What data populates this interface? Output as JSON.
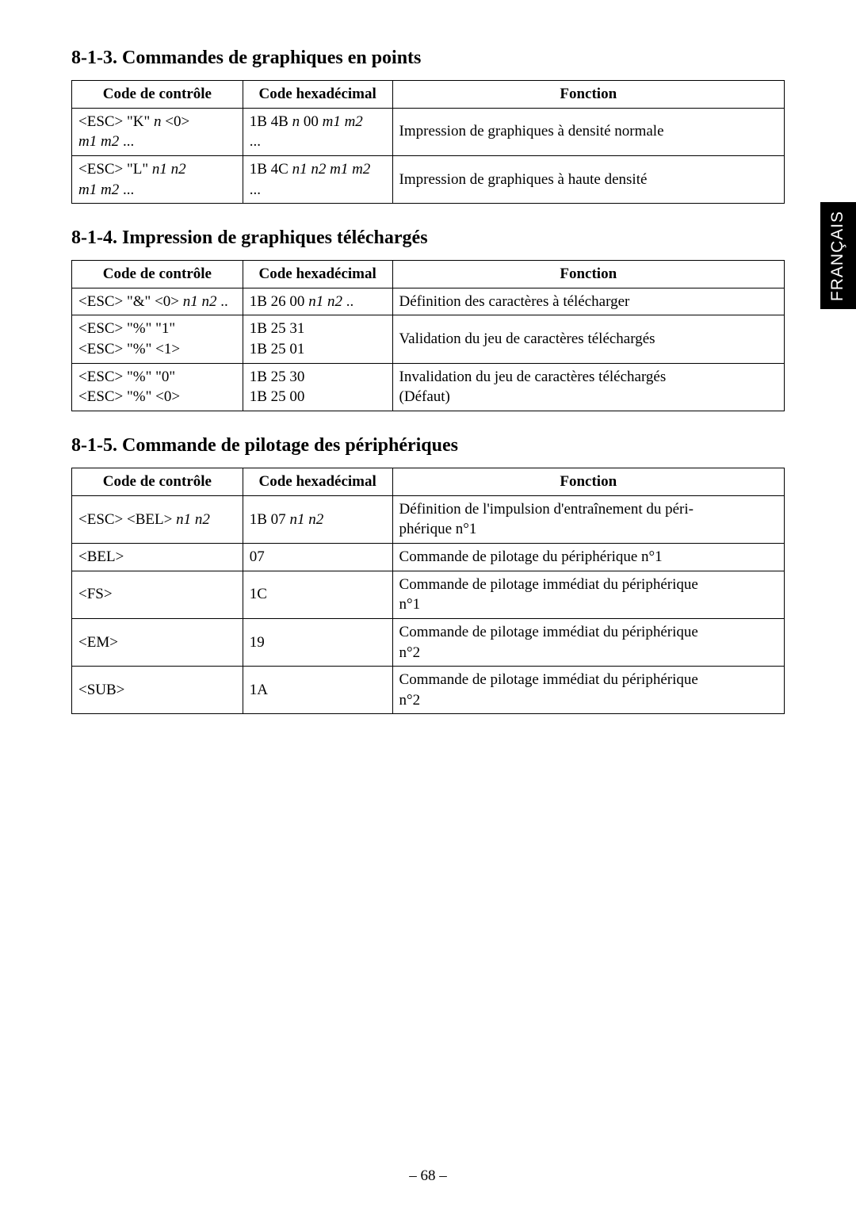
{
  "sideTab": "FRANÇAIS",
  "pageNumber": "– 68 –",
  "sections": [
    {
      "heading": "8-1-3. Commandes de graphiques en points",
      "headers": [
        "Code de contrôle",
        "Code hexadécimal",
        "Fonction"
      ],
      "rows": [
        {
          "control": [
            {
              "segments": [
                {
                  "t": "<ESC> \"K\" "
                },
                {
                  "t": "n",
                  "i": true
                },
                {
                  "t": " <0>"
                }
              ]
            },
            {
              "segments": [
                {
                  "t": "m1 m2",
                  "i": true
                },
                {
                  "t": " ..."
                }
              ]
            }
          ],
          "hex": [
            {
              "segments": [
                {
                  "t": "1B 4B "
                },
                {
                  "t": "n",
                  "i": true
                },
                {
                  "t": " 00 "
                },
                {
                  "t": "m1 m2",
                  "i": true
                }
              ]
            },
            {
              "segments": [
                {
                  "t": "..."
                }
              ]
            }
          ],
          "func": [
            {
              "segments": [
                {
                  "t": "Impression de graphiques à densité normale"
                }
              ]
            }
          ]
        },
        {
          "control": [
            {
              "segments": [
                {
                  "t": "<ESC> \"L\" "
                },
                {
                  "t": "n1 n2",
                  "i": true
                }
              ]
            },
            {
              "segments": [
                {
                  "t": "m1 m2",
                  "i": true
                },
                {
                  "t": " ..."
                }
              ]
            }
          ],
          "hex": [
            {
              "segments": [
                {
                  "t": "1B 4C "
                },
                {
                  "t": "n1 n2 m1 m2",
                  "i": true
                }
              ]
            },
            {
              "segments": [
                {
                  "t": "..."
                }
              ]
            }
          ],
          "func": [
            {
              "segments": [
                {
                  "t": "Impression de graphiques à haute densité"
                }
              ]
            }
          ]
        }
      ]
    },
    {
      "heading": "8-1-4. Impression de graphiques téléchargés",
      "headers": [
        "Code de contrôle",
        "Code hexadécimal",
        "Fonction"
      ],
      "rows": [
        {
          "control": [
            {
              "segments": [
                {
                  "t": "<ESC> \"&\" <0> "
                },
                {
                  "t": "n1 n2",
                  "i": true
                },
                {
                  "t": " .."
                }
              ]
            }
          ],
          "hex": [
            {
              "segments": [
                {
                  "t": "1B 26 00 "
                },
                {
                  "t": "n1 n2",
                  "i": true
                },
                {
                  "t": " .."
                }
              ]
            }
          ],
          "func": [
            {
              "segments": [
                {
                  "t": "Définition des caractères à télécharger"
                }
              ]
            }
          ]
        },
        {
          "control": [
            {
              "segments": [
                {
                  "t": "<ESC> \"%\" \"1\""
                }
              ]
            },
            {
              "segments": [
                {
                  "t": "<ESC> \"%\" <1>"
                }
              ]
            }
          ],
          "hex": [
            {
              "segments": [
                {
                  "t": "1B 25 31"
                }
              ]
            },
            {
              "segments": [
                {
                  "t": "1B 25 01"
                }
              ]
            }
          ],
          "func": [
            {
              "segments": [
                {
                  "t": "Validation du jeu de caractères téléchargés"
                }
              ]
            }
          ]
        },
        {
          "control": [
            {
              "segments": [
                {
                  "t": "<ESC> \"%\" \"0\""
                }
              ]
            },
            {
              "segments": [
                {
                  "t": "<ESC> \"%\" <0>"
                }
              ]
            }
          ],
          "hex": [
            {
              "segments": [
                {
                  "t": "1B 25 30"
                }
              ]
            },
            {
              "segments": [
                {
                  "t": "1B 25 00"
                }
              ]
            }
          ],
          "func": [
            {
              "segments": [
                {
                  "t": "Invalidation du jeu de caractères téléchargés"
                }
              ]
            },
            {
              "segments": [
                {
                  "t": "(Défaut)"
                }
              ]
            }
          ]
        }
      ]
    },
    {
      "heading": "8-1-5. Commande de pilotage des périphériques",
      "headers": [
        "Code de contrôle",
        "Code hexadécimal",
        "Fonction"
      ],
      "rows": [
        {
          "control": [
            {
              "segments": [
                {
                  "t": "<ESC> <BEL> "
                },
                {
                  "t": "n1 n2",
                  "i": true
                }
              ]
            }
          ],
          "hex": [
            {
              "segments": [
                {
                  "t": "1B 07 "
                },
                {
                  "t": "n1 n2",
                  "i": true
                }
              ]
            }
          ],
          "func": [
            {
              "segments": [
                {
                  "t": "Définition de l'impulsion d'entraînement du péri-"
                }
              ]
            },
            {
              "segments": [
                {
                  "t": "phérique n°1"
                }
              ]
            }
          ]
        },
        {
          "control": [
            {
              "segments": [
                {
                  "t": "<BEL>"
                }
              ]
            }
          ],
          "hex": [
            {
              "segments": [
                {
                  "t": "07"
                }
              ]
            }
          ],
          "func": [
            {
              "segments": [
                {
                  "t": "Commande de pilotage du périphérique n°1"
                }
              ]
            }
          ]
        },
        {
          "control": [
            {
              "segments": [
                {
                  "t": "<FS>"
                }
              ]
            }
          ],
          "hex": [
            {
              "segments": [
                {
                  "t": "1C"
                }
              ]
            }
          ],
          "func": [
            {
              "segments": [
                {
                  "t": "Commande de pilotage immédiat du périphérique"
                }
              ]
            },
            {
              "segments": [
                {
                  "t": "n°1"
                }
              ]
            }
          ]
        },
        {
          "control": [
            {
              "segments": [
                {
                  "t": "<EM>"
                }
              ]
            }
          ],
          "hex": [
            {
              "segments": [
                {
                  "t": "19"
                }
              ]
            }
          ],
          "func": [
            {
              "segments": [
                {
                  "t": "Commande de pilotage immédiat du périphérique"
                }
              ]
            },
            {
              "segments": [
                {
                  "t": "n°2"
                }
              ]
            }
          ]
        },
        {
          "control": [
            {
              "segments": [
                {
                  "t": "<SUB>"
                }
              ]
            }
          ],
          "hex": [
            {
              "segments": [
                {
                  "t": "1A"
                }
              ]
            }
          ],
          "func": [
            {
              "segments": [
                {
                  "t": "Commande de pilotage immédiat du périphérique"
                }
              ]
            },
            {
              "segments": [
                {
                  "t": "n°2"
                }
              ]
            }
          ]
        }
      ]
    }
  ]
}
